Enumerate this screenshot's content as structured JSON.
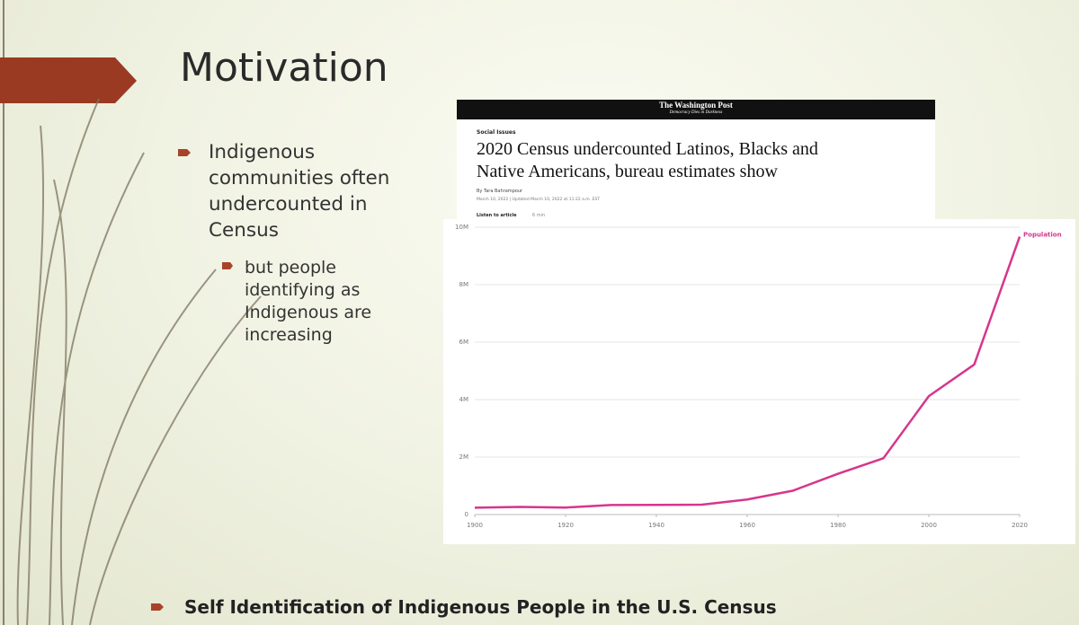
{
  "slide": {
    "title": "Motivation",
    "bullets": [
      "Indigenous communities often undercounted in Census"
    ],
    "sub_bullets": [
      "but people identifying as Indigenous are increasing"
    ],
    "footer": "Self Identification of Indigenous People in the U.S. Census"
  },
  "article": {
    "masthead": "The Washington Post",
    "tagline": "Democracy Dies in Darkness",
    "kicker": "Social Issues",
    "headline": [
      "2020 Census undercounted Latinos, Blacks and",
      "Native Americans, bureau estimates show"
    ],
    "byline": "By Tara Bahrampour",
    "dateline": "March 10, 2022 | Updated March 10, 2022 at 11:22 a.m. EST",
    "listen": "Listen to article",
    "listen_time": "6 min"
  },
  "chart_data": {
    "type": "line",
    "x": [
      1900,
      1910,
      1920,
      1930,
      1940,
      1950,
      1960,
      1970,
      1980,
      1990,
      2000,
      2010,
      2020
    ],
    "series": [
      {
        "name": "Population",
        "color": "#d6368d",
        "values": [
          237000,
          265000,
          244000,
          332000,
          334000,
          343000,
          524000,
          827000,
          1420000,
          1960000,
          4120000,
          5220000,
          9670000
        ]
      }
    ],
    "xlim": [
      1900,
      2020
    ],
    "xticks": [
      1900,
      1920,
      1940,
      1960,
      1980,
      2000,
      2020
    ],
    "ylim": [
      0,
      10000000
    ],
    "yticks": [
      0,
      {
        "value": 2000000,
        "label": "2M"
      },
      {
        "value": 4000000,
        "label": "4M"
      },
      {
        "value": 6000000,
        "label": "6M"
      },
      {
        "value": 8000000,
        "label": "8M"
      },
      {
        "value": 10000000,
        "label": "10M"
      }
    ],
    "grid": true
  }
}
